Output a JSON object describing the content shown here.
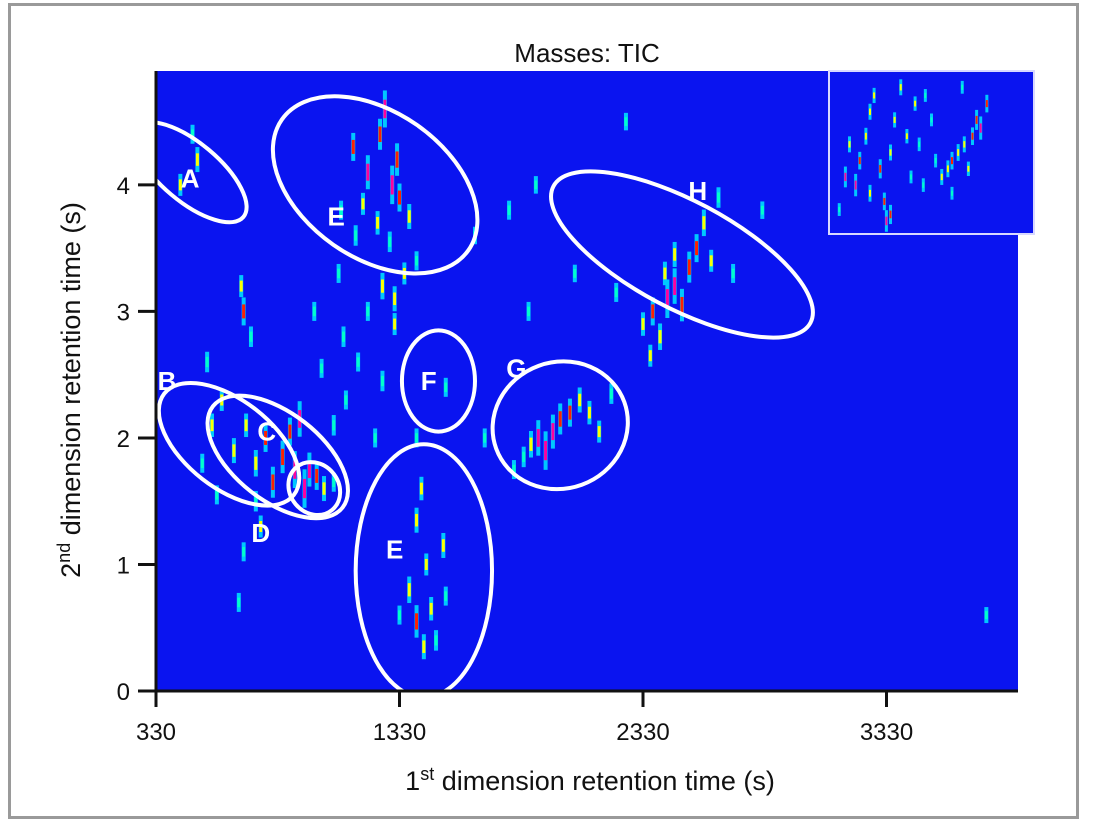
{
  "chart_data": {
    "type": "heatmap",
    "title": "Masses: TIC",
    "xlabel": {
      "base": "1",
      "sup": "st",
      "rest": " dimension retention time (s)"
    },
    "ylabel": {
      "base": "2",
      "sup": "nd",
      "rest": " dimension retention time (s)"
    },
    "xlim": [
      330,
      3870
    ],
    "ylim": [
      0,
      4.9
    ],
    "x_ticks": [
      330,
      1330,
      2330,
      3330
    ],
    "x_tick_labels": [
      "330",
      "1330",
      "2330",
      "3330"
    ],
    "y_ticks": [
      0,
      1,
      2,
      3,
      4
    ],
    "y_tick_labels": [
      "0",
      "1",
      "2",
      "3",
      "4"
    ],
    "background_color": "#0a14f0",
    "colorscale": [
      "#00c8ff",
      "#00ffcc",
      "#ffff00",
      "#ff2000",
      "#ff00a0"
    ],
    "regions": [
      {
        "label": "A",
        "cx": 470,
        "cy": 4.1,
        "rx": 0.55,
        "ry": 120,
        "angle": -50
      },
      {
        "label": "E",
        "cx": 1230,
        "cy": 4.0,
        "rx": 0.9,
        "ry": 300,
        "angle": -55
      },
      {
        "label": "B",
        "cx": 630,
        "cy": 1.95,
        "rx": 0.65,
        "ry": 180,
        "angle": -52
      },
      {
        "label": "C",
        "cx": 830,
        "cy": 1.85,
        "rx": 0.65,
        "ry": 180,
        "angle": -52
      },
      {
        "label": "D",
        "cx": 980,
        "cy": 1.6,
        "rx": 0.22,
        "ry": 100,
        "angle": -40
      },
      {
        "label": "F",
        "cx": 1490,
        "cy": 2.45,
        "rx": 0.4,
        "ry": 150,
        "angle": 0
      },
      {
        "label": "G",
        "cx": 1990,
        "cy": 2.1,
        "rx": 0.5,
        "ry": 280,
        "angle": -20
      },
      {
        "label": "E",
        "cx": 1430,
        "cy": 0.95,
        "rx": 1.0,
        "ry": 280,
        "angle": 0
      },
      {
        "label": "H",
        "cx": 2490,
        "cy": 3.45,
        "rx": 1.15,
        "ry": 220,
        "angle": -62
      }
    ],
    "peaks": [
      {
        "x": 480,
        "y": 4.4,
        "v": 0.3
      },
      {
        "x": 500,
        "y": 4.2,
        "v": 0.5
      },
      {
        "x": 430,
        "y": 4.0,
        "v": 0.4
      },
      {
        "x": 1140,
        "y": 4.3,
        "v": 0.6
      },
      {
        "x": 1200,
        "y": 4.1,
        "v": 0.8
      },
      {
        "x": 1250,
        "y": 4.4,
        "v": 0.7
      },
      {
        "x": 1270,
        "y": 4.6,
        "v": 0.9
      },
      {
        "x": 1300,
        "y": 4.0,
        "v": 0.95
      },
      {
        "x": 1330,
        "y": 3.9,
        "v": 0.6
      },
      {
        "x": 1370,
        "y": 3.75,
        "v": 0.5
      },
      {
        "x": 1180,
        "y": 3.85,
        "v": 0.4
      },
      {
        "x": 1240,
        "y": 3.7,
        "v": 0.45
      },
      {
        "x": 1320,
        "y": 4.2,
        "v": 0.75
      },
      {
        "x": 1290,
        "y": 3.55,
        "v": 0.35
      },
      {
        "x": 1400,
        "y": 3.4,
        "v": 0.3
      },
      {
        "x": 1350,
        "y": 3.3,
        "v": 0.4
      },
      {
        "x": 1260,
        "y": 3.2,
        "v": 0.55
      },
      {
        "x": 1310,
        "y": 3.1,
        "v": 0.5
      },
      {
        "x": 1200,
        "y": 3.0,
        "v": 0.3
      },
      {
        "x": 1150,
        "y": 3.6,
        "v": 0.35
      },
      {
        "x": 1080,
        "y": 3.3,
        "v": 0.3
      },
      {
        "x": 690,
        "y": 3.0,
        "v": 0.6
      },
      {
        "x": 680,
        "y": 3.2,
        "v": 0.4
      },
      {
        "x": 720,
        "y": 2.8,
        "v": 0.35
      },
      {
        "x": 540,
        "y": 2.6,
        "v": 0.35
      },
      {
        "x": 560,
        "y": 2.1,
        "v": 0.45
      },
      {
        "x": 600,
        "y": 2.3,
        "v": 0.4
      },
      {
        "x": 650,
        "y": 1.9,
        "v": 0.5
      },
      {
        "x": 520,
        "y": 1.8,
        "v": 0.3
      },
      {
        "x": 580,
        "y": 1.55,
        "v": 0.3
      },
      {
        "x": 700,
        "y": 2.1,
        "v": 0.45
      },
      {
        "x": 740,
        "y": 1.8,
        "v": 0.55
      },
      {
        "x": 780,
        "y": 2.0,
        "v": 0.6
      },
      {
        "x": 810,
        "y": 1.65,
        "v": 0.7
      },
      {
        "x": 850,
        "y": 1.85,
        "v": 0.75
      },
      {
        "x": 880,
        "y": 2.05,
        "v": 0.6
      },
      {
        "x": 900,
        "y": 1.75,
        "v": 0.9
      },
      {
        "x": 920,
        "y": 2.15,
        "v": 0.85
      },
      {
        "x": 940,
        "y": 1.6,
        "v": 0.95
      },
      {
        "x": 960,
        "y": 1.75,
        "v": 0.8
      },
      {
        "x": 990,
        "y": 1.7,
        "v": 0.6
      },
      {
        "x": 1020,
        "y": 1.6,
        "v": 0.5
      },
      {
        "x": 1060,
        "y": 1.65,
        "v": 0.3
      },
      {
        "x": 760,
        "y": 1.3,
        "v": 0.4
      },
      {
        "x": 740,
        "y": 1.5,
        "v": 0.35
      },
      {
        "x": 670,
        "y": 0.7,
        "v": 0.3
      },
      {
        "x": 690,
        "y": 1.1,
        "v": 0.3
      },
      {
        "x": 1060,
        "y": 2.1,
        "v": 0.35
      },
      {
        "x": 1110,
        "y": 2.3,
        "v": 0.3
      },
      {
        "x": 1160,
        "y": 2.6,
        "v": 0.3
      },
      {
        "x": 1100,
        "y": 2.8,
        "v": 0.35
      },
      {
        "x": 1260,
        "y": 2.45,
        "v": 0.35
      },
      {
        "x": 1310,
        "y": 2.9,
        "v": 0.4
      },
      {
        "x": 1230,
        "y": 2.0,
        "v": 0.3
      },
      {
        "x": 1400,
        "y": 2.0,
        "v": 0.3
      },
      {
        "x": 1520,
        "y": 2.4,
        "v": 0.3
      },
      {
        "x": 1680,
        "y": 2.0,
        "v": 0.3
      },
      {
        "x": 1420,
        "y": 1.6,
        "v": 0.45
      },
      {
        "x": 1400,
        "y": 1.35,
        "v": 0.5
      },
      {
        "x": 1440,
        "y": 1.0,
        "v": 0.4
      },
      {
        "x": 1370,
        "y": 0.8,
        "v": 0.55
      },
      {
        "x": 1400,
        "y": 0.55,
        "v": 0.75
      },
      {
        "x": 1430,
        "y": 0.35,
        "v": 0.5
      },
      {
        "x": 1460,
        "y": 0.65,
        "v": 0.45
      },
      {
        "x": 1510,
        "y": 1.15,
        "v": 0.5
      },
      {
        "x": 1480,
        "y": 0.4,
        "v": 0.35
      },
      {
        "x": 1330,
        "y": 0.6,
        "v": 0.3
      },
      {
        "x": 1520,
        "y": 0.75,
        "v": 0.3
      },
      {
        "x": 1870,
        "y": 1.95,
        "v": 0.55
      },
      {
        "x": 1900,
        "y": 2.0,
        "v": 0.85
      },
      {
        "x": 1930,
        "y": 1.9,
        "v": 0.95
      },
      {
        "x": 1960,
        "y": 2.05,
        "v": 0.8
      },
      {
        "x": 1990,
        "y": 2.15,
        "v": 0.7
      },
      {
        "x": 2030,
        "y": 2.2,
        "v": 0.6
      },
      {
        "x": 2070,
        "y": 2.3,
        "v": 0.5
      },
      {
        "x": 2110,
        "y": 2.2,
        "v": 0.45
      },
      {
        "x": 2150,
        "y": 2.05,
        "v": 0.4
      },
      {
        "x": 1840,
        "y": 1.85,
        "v": 0.35
      },
      {
        "x": 2200,
        "y": 2.35,
        "v": 0.35
      },
      {
        "x": 1800,
        "y": 1.75,
        "v": 0.3
      },
      {
        "x": 2330,
        "y": 2.9,
        "v": 0.45
      },
      {
        "x": 2370,
        "y": 3.0,
        "v": 0.6
      },
      {
        "x": 2400,
        "y": 2.8,
        "v": 0.55
      },
      {
        "x": 2430,
        "y": 3.1,
        "v": 0.95
      },
      {
        "x": 2460,
        "y": 3.2,
        "v": 0.85
      },
      {
        "x": 2490,
        "y": 3.05,
        "v": 0.75
      },
      {
        "x": 2520,
        "y": 3.35,
        "v": 0.7
      },
      {
        "x": 2550,
        "y": 3.5,
        "v": 0.6
      },
      {
        "x": 2580,
        "y": 3.7,
        "v": 0.55
      },
      {
        "x": 2610,
        "y": 3.4,
        "v": 0.4
      },
      {
        "x": 2360,
        "y": 2.65,
        "v": 0.4
      },
      {
        "x": 2640,
        "y": 3.9,
        "v": 0.35
      },
      {
        "x": 2460,
        "y": 3.45,
        "v": 0.5
      },
      {
        "x": 2420,
        "y": 3.3,
        "v": 0.45
      },
      {
        "x": 2700,
        "y": 3.3,
        "v": 0.3
      },
      {
        "x": 1860,
        "y": 3.0,
        "v": 0.3
      },
      {
        "x": 1780,
        "y": 3.8,
        "v": 0.3
      },
      {
        "x": 1890,
        "y": 4.0,
        "v": 0.25
      },
      {
        "x": 2220,
        "y": 3.15,
        "v": 0.3
      },
      {
        "x": 2050,
        "y": 3.3,
        "v": 0.25
      },
      {
        "x": 1640,
        "y": 3.6,
        "v": 0.25
      },
      {
        "x": 2820,
        "y": 3.8,
        "v": 0.25
      },
      {
        "x": 3740,
        "y": 0.6,
        "v": 0.2
      },
      {
        "x": 2260,
        "y": 4.5,
        "v": 0.25
      },
      {
        "x": 1090,
        "y": 3.8,
        "v": 0.3
      },
      {
        "x": 1010,
        "y": 2.55,
        "v": 0.3
      },
      {
        "x": 980,
        "y": 3.0,
        "v": 0.3
      }
    ],
    "inset": {
      "peaks": [
        {
          "x": 0.08,
          "y": 0.35,
          "v": 0.8
        },
        {
          "x": 0.1,
          "y": 0.55,
          "v": 0.5
        },
        {
          "x": 0.13,
          "y": 0.3,
          "v": 0.9
        },
        {
          "x": 0.15,
          "y": 0.45,
          "v": 0.6
        },
        {
          "x": 0.18,
          "y": 0.6,
          "v": 0.55
        },
        {
          "x": 0.2,
          "y": 0.75,
          "v": 0.5
        },
        {
          "x": 0.22,
          "y": 0.85,
          "v": 0.45
        },
        {
          "x": 0.25,
          "y": 0.4,
          "v": 0.7
        },
        {
          "x": 0.27,
          "y": 0.2,
          "v": 0.6
        },
        {
          "x": 0.3,
          "y": 0.5,
          "v": 0.5
        },
        {
          "x": 0.32,
          "y": 0.7,
          "v": 0.45
        },
        {
          "x": 0.35,
          "y": 0.9,
          "v": 0.5
        },
        {
          "x": 0.38,
          "y": 0.6,
          "v": 0.4
        },
        {
          "x": 0.42,
          "y": 0.8,
          "v": 0.4
        },
        {
          "x": 0.28,
          "y": 0.08,
          "v": 0.85
        },
        {
          "x": 0.3,
          "y": 0.12,
          "v": 0.7
        },
        {
          "x": 0.47,
          "y": 0.85,
          "v": 0.3
        },
        {
          "x": 0.5,
          "y": 0.7,
          "v": 0.3
        },
        {
          "x": 0.52,
          "y": 0.45,
          "v": 0.35
        },
        {
          "x": 0.46,
          "y": 0.3,
          "v": 0.35
        },
        {
          "x": 0.55,
          "y": 0.35,
          "v": 0.5
        },
        {
          "x": 0.58,
          "y": 0.4,
          "v": 0.55
        },
        {
          "x": 0.6,
          "y": 0.45,
          "v": 0.6
        },
        {
          "x": 0.63,
          "y": 0.5,
          "v": 0.55
        },
        {
          "x": 0.66,
          "y": 0.55,
          "v": 0.5
        },
        {
          "x": 0.7,
          "y": 0.6,
          "v": 0.6
        },
        {
          "x": 0.72,
          "y": 0.7,
          "v": 0.75
        },
        {
          "x": 0.74,
          "y": 0.65,
          "v": 0.95
        },
        {
          "x": 0.77,
          "y": 0.8,
          "v": 0.6
        },
        {
          "x": 0.68,
          "y": 0.4,
          "v": 0.4
        },
        {
          "x": 0.6,
          "y": 0.25,
          "v": 0.3
        },
        {
          "x": 0.65,
          "y": 0.9,
          "v": 0.3
        },
        {
          "x": 0.05,
          "y": 0.15,
          "v": 0.3
        },
        {
          "x": 0.4,
          "y": 0.35,
          "v": 0.3
        },
        {
          "x": 0.2,
          "y": 0.25,
          "v": 0.55
        },
        {
          "x": 0.44,
          "y": 0.55,
          "v": 0.35
        }
      ]
    }
  }
}
